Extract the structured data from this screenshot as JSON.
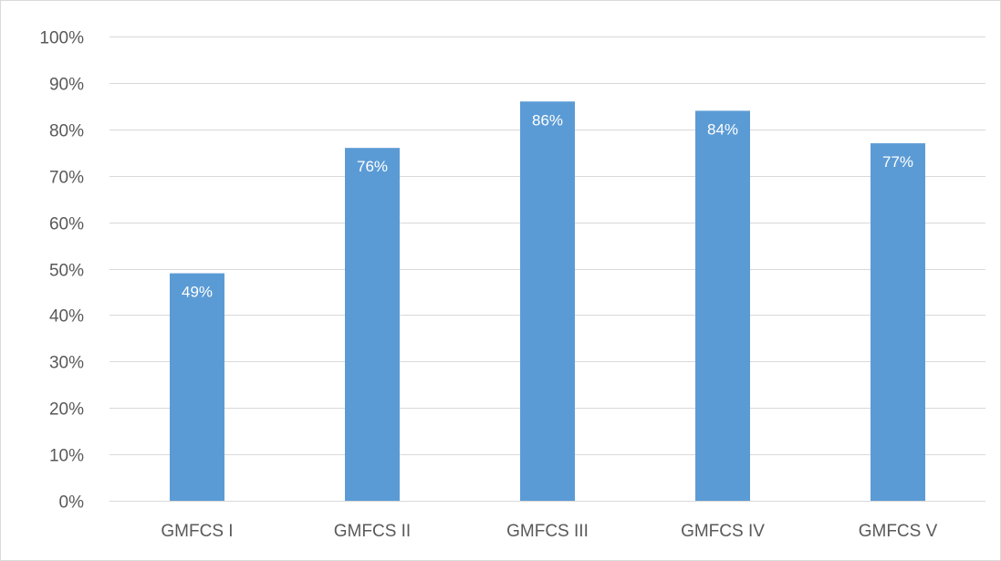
{
  "chart_data": {
    "type": "bar",
    "categories": [
      "GMFCS I",
      "GMFCS II",
      "GMFCS III",
      "GMFCS IV",
      "GMFCS V"
    ],
    "values": [
      49,
      76,
      86,
      84,
      77
    ],
    "data_labels": [
      "49%",
      "76%",
      "86%",
      "84%",
      "77%"
    ],
    "y_tick_labels": [
      "0%",
      "10%",
      "20%",
      "30%",
      "40%",
      "50%",
      "60%",
      "70%",
      "80%",
      "90%",
      "100%"
    ],
    "ylim": [
      0,
      100
    ],
    "y_unit": "%",
    "title": "",
    "xlabel": "",
    "ylabel": "",
    "grid": true,
    "legend": "none",
    "bar_color": "#5b9bd5",
    "grid_color": "#d9d9d9"
  }
}
